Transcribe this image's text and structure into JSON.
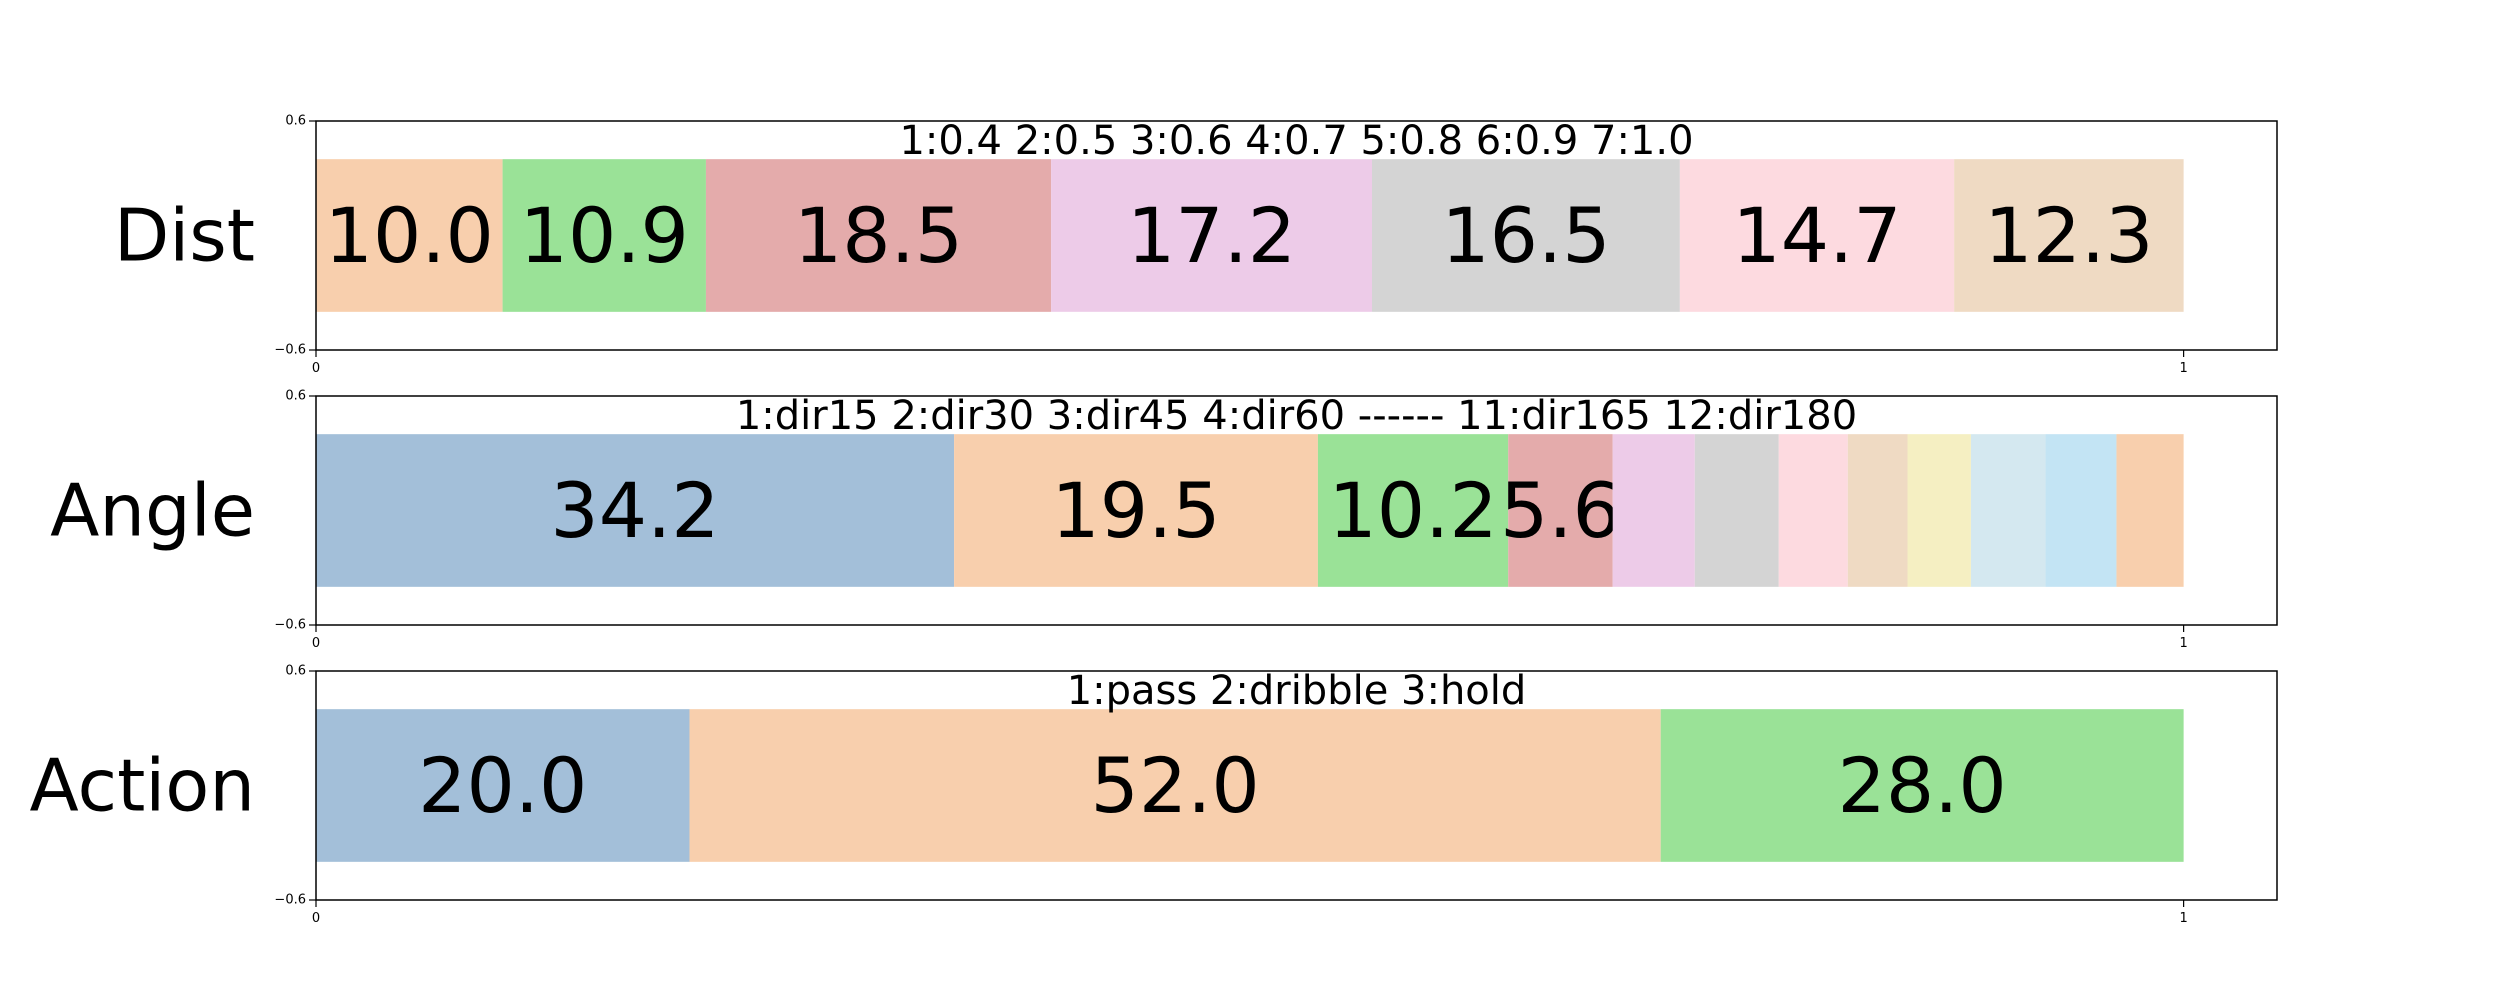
{
  "chart_data": [
    {
      "type": "bar",
      "orientation": "horizontal-stacked",
      "row_label": "Dist",
      "legend_text": "1:0.4  2:0.5  3:0.6  4:0.7  5:0.8  6:0.9  7:1.0",
      "xlim": [
        0,
        1.05
      ],
      "ylim": [
        -0.6,
        0.6
      ],
      "x_ticks": [
        "0",
        "1"
      ],
      "y_ticks": [
        "0.6",
        "−0.6"
      ],
      "categories": [
        "1",
        "2",
        "3",
        "4",
        "5",
        "6",
        "7"
      ],
      "values": [
        10.0,
        10.9,
        18.5,
        17.2,
        16.5,
        14.7,
        12.3
      ],
      "labels": [
        "10.0",
        "10.9",
        "18.5",
        "17.2",
        "16.5",
        "14.7",
        "12.3"
      ],
      "colors": [
        "#f8cfad",
        "#9ae297",
        "#e4abab",
        "#edcbe8",
        "#d4d4d4",
        "#fddae0",
        "#efdac3"
      ]
    },
    {
      "type": "bar",
      "orientation": "horizontal-stacked",
      "row_label": "Angle",
      "legend_text": "1:dir15 2:dir30 3:dir45 4:dir60 ------ 11:dir165 12:dir180",
      "xlim": [
        0,
        1.05
      ],
      "ylim": [
        -0.6,
        0.6
      ],
      "x_ticks": [
        "0",
        "1"
      ],
      "y_ticks": [
        "0.6",
        "−0.6"
      ],
      "categories": [
        "1",
        "2",
        "3",
        "4",
        "5",
        "6",
        "7",
        "8",
        "9",
        "10",
        "11",
        "12"
      ],
      "values": [
        34.2,
        19.5,
        10.2,
        5.6,
        4.4,
        4.5,
        3.7,
        3.2,
        3.4,
        4.0,
        3.8,
        3.6
      ],
      "labels": [
        "34.2",
        "19.5",
        "10.2",
        "5.6",
        "",
        "",
        "",
        "",
        "",
        "",
        "",
        ""
      ],
      "colors": [
        "#a3bfd9",
        "#f8cfad",
        "#9ae297",
        "#e4abab",
        "#edcbe8",
        "#d4d4d4",
        "#fddae0",
        "#efdac3",
        "#f5efc2",
        "#d4e8f0",
        "#c3e4f4",
        "#f8cfad"
      ]
    },
    {
      "type": "bar",
      "orientation": "horizontal-stacked",
      "row_label": "Action",
      "legend_text": "1:pass 2:dribble 3:hold",
      "xlim": [
        0,
        1.05
      ],
      "ylim": [
        -0.6,
        0.6
      ],
      "x_ticks": [
        "0",
        "1"
      ],
      "y_ticks": [
        "0.6",
        "−0.6"
      ],
      "categories": [
        "1",
        "2",
        "3"
      ],
      "values": [
        20.0,
        52.0,
        28.0
      ],
      "labels": [
        "20.0",
        "52.0",
        "28.0"
      ],
      "colors": [
        "#a3bfd9",
        "#f8cfad",
        "#9ae297"
      ]
    }
  ]
}
